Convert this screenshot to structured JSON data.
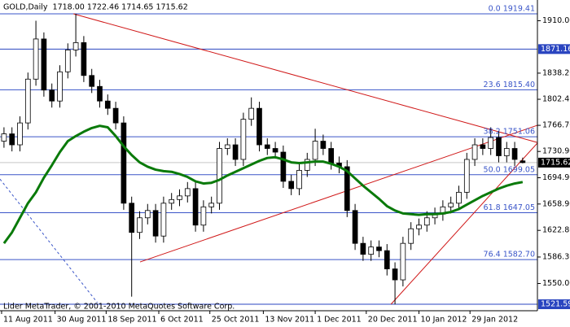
{
  "chart_data": {
    "type": "candlestick",
    "title": "GOLD,Daily  1718.00 1722.46 1714.65 1715.62",
    "credit": "Lider MetaTrader, © 2001-2010 MetaQuotes Software Corp.",
    "up_color": "#ffffff",
    "down_color": "#000000",
    "wick_color": "#000000",
    "open": [
      1745,
      1755,
      1740,
      1770,
      1830,
      1885,
      1815,
      1800,
      1840,
      1870,
      1880,
      1835,
      1820,
      1800,
      1790,
      1770,
      1660,
      1620,
      1640,
      1650,
      1615,
      1660,
      1665,
      1670,
      1680,
      1630,
      1655,
      1660,
      1735,
      1740,
      1720,
      1775,
      1790,
      1740,
      1735,
      1730,
      1690,
      1680,
      1705,
      1720,
      1745,
      1735,
      1715,
      1710,
      1650,
      1605,
      1590,
      1600,
      1595,
      1570,
      1555,
      1605,
      1625,
      1630,
      1640,
      1645,
      1655,
      1660,
      1675,
      1720,
      1740,
      1735,
      1750,
      1725,
      1735,
      1718
    ],
    "high": [
      1764,
      1764,
      1779,
      1839,
      1910,
      1894,
      1824,
      1849,
      1879,
      1919.41,
      1889,
      1844,
      1829,
      1809,
      1799,
      1779,
      1669,
      1649,
      1659,
      1659,
      1669,
      1674,
      1679,
      1689,
      1689,
      1664,
      1669,
      1744,
      1749,
      1749,
      1784,
      1805,
      1799,
      1749,
      1744,
      1739,
      1699,
      1714,
      1729,
      1762,
      1754,
      1744,
      1724,
      1719,
      1659,
      1614,
      1609,
      1609,
      1604,
      1579,
      1614,
      1634,
      1639,
      1649,
      1654,
      1664,
      1669,
      1684,
      1729,
      1749,
      1749,
      1764,
      1759,
      1744,
      1744,
      1722.46
    ],
    "low": [
      1736,
      1731,
      1731,
      1761,
      1821,
      1806,
      1791,
      1791,
      1831,
      1861,
      1826,
      1811,
      1791,
      1781,
      1761,
      1651,
      1532,
      1611,
      1631,
      1606,
      1606,
      1651,
      1656,
      1661,
      1621,
      1621,
      1646,
      1651,
      1726,
      1711,
      1711,
      1766,
      1731,
      1726,
      1721,
      1681,
      1671,
      1671,
      1696,
      1711,
      1726,
      1706,
      1701,
      1641,
      1596,
      1581,
      1581,
      1586,
      1561,
      1521.59,
      1546,
      1596,
      1616,
      1621,
      1631,
      1636,
      1646,
      1651,
      1666,
      1711,
      1726,
      1726,
      1716,
      1716,
      1711,
      1714.65
    ],
    "close": [
      1755,
      1740,
      1770,
      1830,
      1885,
      1815,
      1800,
      1840,
      1870,
      1880,
      1835,
      1820,
      1800,
      1790,
      1770,
      1660,
      1620,
      1640,
      1650,
      1615,
      1660,
      1665,
      1670,
      1680,
      1630,
      1655,
      1660,
      1735,
      1740,
      1720,
      1775,
      1790,
      1740,
      1735,
      1730,
      1690,
      1680,
      1705,
      1720,
      1745,
      1735,
      1715,
      1710,
      1650,
      1605,
      1590,
      1600,
      1595,
      1570,
      1555,
      1605,
      1625,
      1630,
      1640,
      1645,
      1655,
      1660,
      1675,
      1720,
      1740,
      1735,
      1750,
      1725,
      1735,
      1720,
      1715.62
    ],
    "moving_average": {
      "color": "#0a7a0a",
      "values": [
        1605,
        1620,
        1640,
        1660,
        1675,
        1695,
        1712,
        1730,
        1745,
        1752,
        1758,
        1763,
        1766,
        1764,
        1752,
        1738,
        1726,
        1716,
        1710,
        1706,
        1704,
        1703,
        1700,
        1696,
        1690,
        1687,
        1688,
        1692,
        1698,
        1703,
        1708,
        1713,
        1718,
        1722,
        1723,
        1720,
        1716,
        1715,
        1716,
        1717,
        1717,
        1714,
        1710,
        1704,
        1694,
        1684,
        1675,
        1666,
        1656,
        1650,
        1646,
        1645,
        1644,
        1645,
        1645,
        1646,
        1648,
        1652,
        1658,
        1664,
        1670,
        1675,
        1680,
        1684,
        1687,
        1689
      ]
    },
    "xlim": [
      -0.5,
      66.85
    ],
    "xticks": [
      {
        "value": -0.3,
        "label": "11 Aug 2011"
      },
      {
        "value": 6.4,
        "label": "30 Aug 2011"
      },
      {
        "value": 12.8,
        "label": "18 Sep 2011"
      },
      {
        "value": 19.4,
        "label": "6 Oct 2011"
      },
      {
        "value": 25.8,
        "label": "25 Oct 2011"
      },
      {
        "value": 32.5,
        "label": "13 Nov 2011"
      },
      {
        "value": 39,
        "label": "1 Dec 2011"
      },
      {
        "value": 45.4,
        "label": "20 Dec 2011"
      },
      {
        "value": 52,
        "label": "10 Jan 2012"
      },
      {
        "value": 58.4,
        "label": "29 Jan 2012"
      }
    ],
    "ylim": [
      1512.7,
      1938.4
    ],
    "yticks": [
      {
        "value": 1910,
        "label": "1910.00"
      },
      {
        "value": 1838.2,
        "label": "1838.20"
      },
      {
        "value": 1802.4,
        "label": "1802.40"
      },
      {
        "value": 1766.7,
        "label": "1766.70"
      },
      {
        "value": 1730.9,
        "label": "1730.90"
      },
      {
        "value": 1694.9,
        "label": "1694.90"
      },
      {
        "value": 1658.9,
        "label": "1658.90"
      },
      {
        "value": 1622.8,
        "label": "1622.80"
      },
      {
        "value": 1586.3,
        "label": "1586.30"
      },
      {
        "value": 1550,
        "label": "1550.00"
      }
    ],
    "levels_color": "#3a55c8",
    "levels": [
      {
        "value": 1919.41,
        "label": "0.0 1919.41"
      },
      {
        "value": 1815.4,
        "label": "23.6 1815.40"
      },
      {
        "value": 1751.06,
        "label": "38.2 1751.06"
      },
      {
        "value": 1699.05,
        "label": "50.0 1699.05"
      },
      {
        "value": 1647.05,
        "label": "61.8 1647.05"
      },
      {
        "value": 1582.7,
        "label": "76.4 1582.70"
      }
    ],
    "price_boxes": [
      {
        "value": 1871.16,
        "color": "#2a45c0",
        "line_color": "#2a45c0"
      },
      {
        "value": 1521.59,
        "color": "#2a45c0",
        "line_color": "#2a45c0"
      },
      {
        "value": 1715.62,
        "color": "#000000",
        "line_color": "#c8c8c8"
      }
    ],
    "trendlines": [
      {
        "color": "#d01818",
        "dashed": false,
        "x": [
          8.7,
          66.9
        ],
        "y": [
          1919.41,
          1743
        ]
      },
      {
        "color": "#d01818",
        "dashed": false,
        "x": [
          17.05,
          70.9
        ],
        "y": [
          1579.5,
          1782
        ]
      },
      {
        "color": "#d01818",
        "dashed": false,
        "x": [
          48.5,
          66.9
        ],
        "y": [
          1521.59,
          1743
        ]
      },
      {
        "color": "#3a55c8",
        "dashed": true,
        "x": [
          -0.5,
          11.7
        ],
        "y": [
          1693,
          1523.8
        ]
      }
    ]
  }
}
